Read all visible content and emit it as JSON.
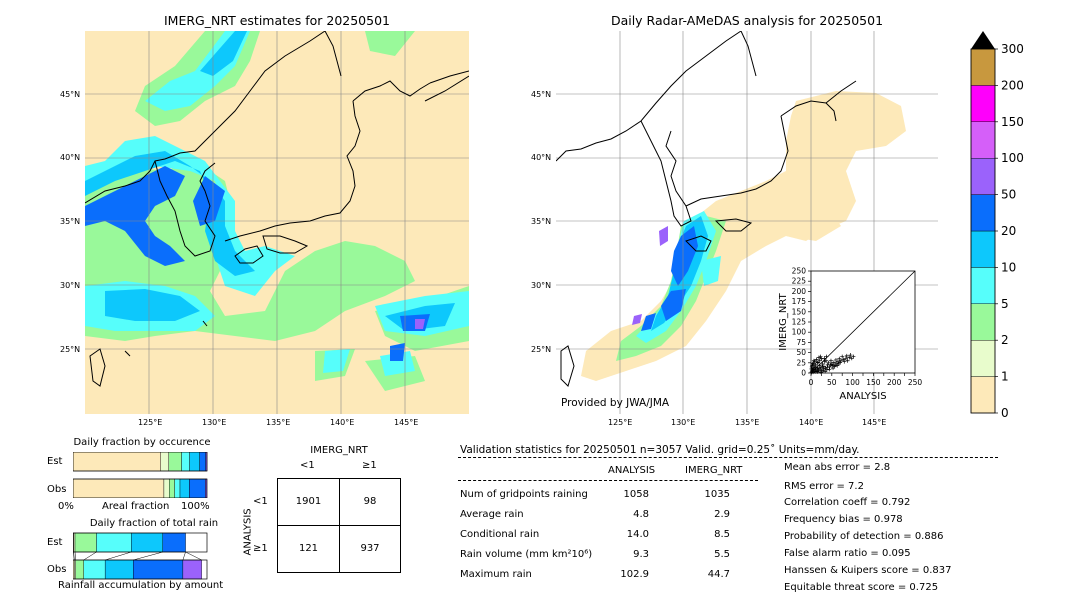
{
  "maps": {
    "left_title": "IMERG_NRT estimates for 20250501",
    "right_title": "Daily Radar-AMeDAS analysis for 20250501",
    "lat_labels": [
      "45°N",
      "40°N",
      "35°N",
      "30°N",
      "25°N"
    ],
    "lon_labels": [
      "125°E",
      "130°E",
      "135°E",
      "140°E",
      "145°E"
    ],
    "credit": "Provided by JWA/JMA"
  },
  "colorbar": {
    "levels": [
      "0",
      "1",
      "2",
      "5",
      "10",
      "20",
      "50",
      "100",
      "150",
      "200",
      "300"
    ],
    "colors": [
      "#fde9b9",
      "#e8fccc",
      "#99f99a",
      "#56fefb",
      "#0dc8fc",
      "#0a6efc",
      "#9b62fb",
      "#d55ff9",
      "#fe00fb",
      "#c8983e"
    ]
  },
  "chart_data": [
    {
      "type": "scatter",
      "xlabel": "ANALYSIS",
      "ylabel": "IMERG_NRT",
      "xlim": [
        0,
        250
      ],
      "ylim": [
        0,
        250
      ],
      "xticks": [
        "0",
        "25",
        "50",
        "75",
        "100",
        "125",
        "150",
        "175",
        "200",
        "225",
        "250"
      ],
      "yticks": [
        "0",
        "25",
        "50",
        "75",
        "100",
        "125",
        "150",
        "175",
        "200",
        "225",
        "250"
      ],
      "xtick_labels": [
        "0",
        "",
        "50",
        "",
        "100",
        "",
        "150",
        "",
        "200",
        "",
        "250"
      ],
      "ytick_labels": [
        "0",
        "25",
        "50",
        "75",
        "100",
        "125",
        "150",
        "175",
        "200",
        "225",
        "250"
      ],
      "points": [
        [
          2,
          3
        ],
        [
          4,
          8
        ],
        [
          5,
          2
        ],
        [
          6,
          12
        ],
        [
          8,
          5
        ],
        [
          9,
          15
        ],
        [
          10,
          3
        ],
        [
          11,
          20
        ],
        [
          12,
          8
        ],
        [
          14,
          4
        ],
        [
          15,
          25
        ],
        [
          16,
          12
        ],
        [
          18,
          6
        ],
        [
          20,
          18
        ],
        [
          21,
          30
        ],
        [
          22,
          9
        ],
        [
          24,
          14
        ],
        [
          25,
          35
        ],
        [
          26,
          5
        ],
        [
          28,
          22
        ],
        [
          30,
          10
        ],
        [
          31,
          16
        ],
        [
          33,
          28
        ],
        [
          35,
          12
        ],
        [
          36,
          30
        ],
        [
          38,
          8
        ],
        [
          40,
          20
        ],
        [
          42,
          25
        ],
        [
          45,
          15
        ],
        [
          48,
          30
        ],
        [
          50,
          22
        ],
        [
          52,
          18
        ],
        [
          55,
          26
        ],
        [
          58,
          20
        ],
        [
          60,
          32
        ],
        [
          62,
          24
        ],
        [
          65,
          28
        ],
        [
          68,
          35
        ],
        [
          70,
          26
        ],
        [
          72,
          30
        ],
        [
          75,
          40
        ],
        [
          78,
          33
        ],
        [
          80,
          28
        ],
        [
          84,
          36
        ],
        [
          86,
          42
        ],
        [
          88,
          30
        ],
        [
          92,
          38
        ],
        [
          95,
          44
        ],
        [
          98,
          36
        ],
        [
          102,
          40
        ],
        [
          3,
          18
        ],
        [
          6,
          24
        ],
        [
          9,
          28
        ],
        [
          13,
          33
        ],
        [
          17,
          26
        ],
        [
          19,
          38
        ],
        [
          23,
          40
        ],
        [
          27,
          15
        ],
        [
          32,
          36
        ],
        [
          37,
          40
        ],
        [
          1,
          1
        ],
        [
          3,
          6
        ],
        [
          7,
          9
        ],
        [
          12,
          14
        ],
        [
          16,
          3
        ],
        [
          19,
          10
        ],
        [
          24,
          2
        ],
        [
          29,
          6
        ],
        [
          34,
          4
        ],
        [
          39,
          14
        ],
        [
          44,
          9
        ],
        [
          47,
          20
        ],
        [
          53,
          12
        ],
        [
          57,
          16
        ],
        [
          63,
          18
        ],
        [
          67,
          22
        ],
        [
          1,
          10
        ],
        [
          2,
          15
        ],
        [
          4,
          22
        ],
        [
          7,
          30
        ]
      ]
    },
    {
      "type": "bar",
      "title": "Daily fraction by occurence",
      "categories": [
        "Est",
        "Obs"
      ],
      "xlabel_left": "0%",
      "xlabel_mid": "Areal fraction",
      "xlabel_right": "100%",
      "series": [
        {
          "values": [
            0.655,
            0.6785
          ]
        },
        {
          "values": [
            0.06,
            0.04
          ]
        },
        {
          "values": [
            0.095,
            0.04
          ]
        },
        {
          "values": [
            0.06,
            0.04
          ]
        },
        {
          "values": [
            0.075,
            0.07
          ]
        },
        {
          "values": [
            0.045,
            0.12
          ]
        },
        {
          "values": [
            0.01,
            0.01
          ]
        }
      ]
    },
    {
      "type": "bar",
      "title": "Daily fraction of total rain",
      "categories": [
        "Est",
        "Obs"
      ],
      "xlabel": "Rainfall accumulation by amount",
      "series": [
        {
          "values": [
            0.005,
            0.01
          ]
        },
        {
          "values": [
            0.01,
            0.01
          ]
        },
        {
          "values": [
            0.16,
            0.06
          ]
        },
        {
          "values": [
            0.26,
            0.16
          ]
        },
        {
          "values": [
            0.235,
            0.21
          ]
        },
        {
          "values": [
            0.17,
            0.37
          ]
        },
        {
          "values": [
            0.0,
            0.14
          ]
        }
      ]
    }
  ],
  "contingency": {
    "title": "IMERG_NRT",
    "col_lt": "<1",
    "col_ge": "≥1",
    "side": "ANALYSIS",
    "row_lt": "<1",
    "row_ge": "≥1",
    "cells": [
      "1901",
      "98",
      "121",
      "937"
    ]
  },
  "validation": {
    "header": "Validation statistics for 20250501  n=3057 Valid. grid=0.25˚ Units=mm/day.",
    "col_analysis": "ANALYSIS",
    "col_imerg": "IMERG_NRT",
    "rows": [
      {
        "label": "Num of gridpoints raining",
        "analysis": "1058",
        "imerg": "1035"
      },
      {
        "label": "Average rain",
        "analysis": "4.8",
        "imerg": "2.9"
      },
      {
        "label": "Conditional rain",
        "analysis": "14.0",
        "imerg": "8.5"
      },
      {
        "label": "Rain volume (mm km²10⁶)",
        "analysis": "9.3",
        "imerg": "5.5"
      },
      {
        "label": "Maximum rain",
        "analysis": "102.9",
        "imerg": "44.7"
      }
    ],
    "scores": [
      "Mean abs error =    2.8",
      "RMS error =    7.2",
      "Correlation coeff =  0.792",
      "Frequency bias =  0.978",
      "Probability of detection =  0.886",
      "False alarm ratio =  0.095",
      "Hanssen & Kuipers score =  0.837",
      "Equitable threat score =  0.725"
    ]
  }
}
